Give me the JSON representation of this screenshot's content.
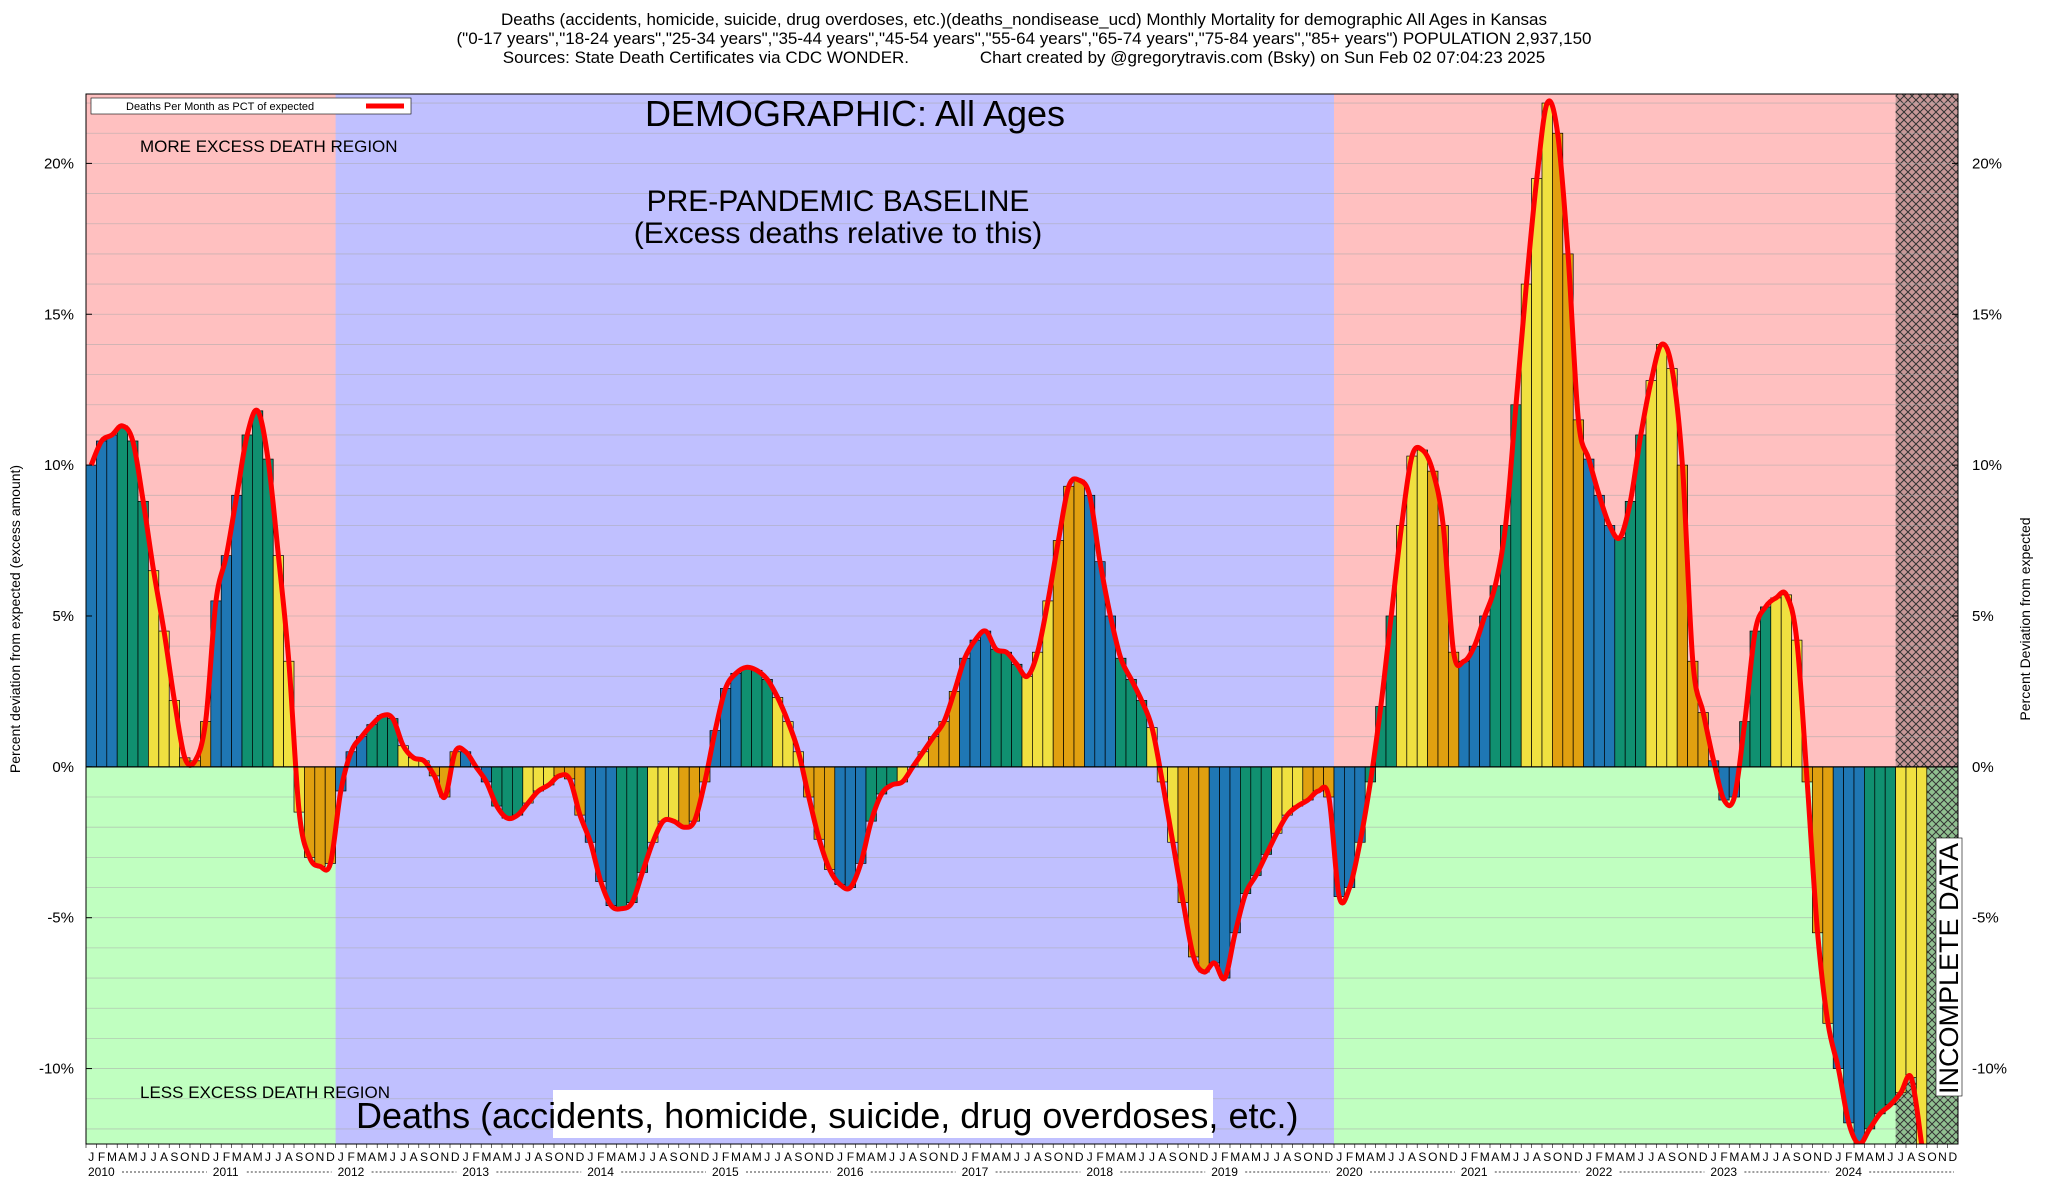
{
  "title_lines": [
    "Deaths (accidents, homicide, suicide, drug overdoses, etc.)(deaths_nondisease_ucd) Monthly Mortality for demographic All Ages in Kansas",
    "(\"0-17 years\",\"18-24 years\",\"25-34 years\",\"35-44 years\",\"45-54 years\",\"55-64 years\",\"65-74 years\",\"75-84 years\",\"85+ years\") POPULATION 2,937,150",
    "Sources: State Death Certificates via CDC WONDER.               Chart created by @gregorytravis.com (Bsky) on Sun Feb 02 07:04:23 2025"
  ],
  "chart_data": {
    "type": "bar",
    "ylabel": "Percent deviation from expected (excess amount)",
    "ylabel_right": "Percent Deviation from expected",
    "ylim": [
      -12.5,
      22.3
    ],
    "y_ticks": [
      -10,
      -5,
      0,
      5,
      10,
      15,
      20
    ],
    "y_tick_labels": [
      "-10%",
      "-5%",
      "0%",
      "5%",
      "10%",
      "15%",
      "20%"
    ],
    "x_start": "2010-01",
    "month_letters": [
      "J",
      "F",
      "M",
      "A",
      "M",
      "J",
      "J",
      "A",
      "S",
      "O",
      "N",
      "D"
    ],
    "years": [
      "2010",
      "2011",
      "2012",
      "2013",
      "2014",
      "2015",
      "2016",
      "2017",
      "2018",
      "2019",
      "2020",
      "2021",
      "2022",
      "2023",
      "2024"
    ],
    "legend": {
      "label": "Deaths Per Month as PCT of expected",
      "line_color": "#ff0000",
      "placement": "top-left"
    },
    "annotations": {
      "demographic": "DEMOGRAPHIC: All Ages",
      "baseline_title": "PRE-PANDEMIC BASELINE",
      "baseline_sub": "(Excess deaths relative to this)",
      "more_region": "MORE EXCESS DEATH REGION",
      "less_region": "LESS EXCESS DEATH REGION",
      "bottom_caption": "Deaths (accidents, homicide, suicide, drug overdoses, etc.)",
      "incomplete": "INCOMPLETE DATA"
    },
    "regions": {
      "baseline_start": "2012-01",
      "baseline_end": "2019-12",
      "incomplete_start": "2024-07"
    },
    "colors": {
      "more_region": "#ffc0c0",
      "less_region": "#c0ffc0",
      "baseline_region": "#c0c0ff",
      "line": "#ff0000",
      "quarter_bars": [
        "#1f77b4",
        "#109070",
        "#f0e040",
        "#e0a010"
      ]
    },
    "values": [
      10.0,
      10.8,
      11.0,
      11.3,
      10.8,
      8.8,
      6.5,
      4.5,
      2.2,
      0.3,
      0.2,
      1.5,
      5.5,
      7.0,
      9.0,
      11.0,
      11.8,
      10.2,
      7.0,
      3.5,
      -1.5,
      -3.0,
      -3.3,
      -3.2,
      -0.8,
      0.5,
      1.0,
      1.4,
      1.7,
      1.6,
      0.7,
      0.3,
      0.2,
      -0.3,
      -1.0,
      0.5,
      0.5,
      0.0,
      -0.5,
      -1.3,
      -1.7,
      -1.6,
      -1.2,
      -0.8,
      -0.6,
      -0.3,
      -0.4,
      -1.6,
      -2.5,
      -3.8,
      -4.6,
      -4.7,
      -4.5,
      -3.5,
      -2.5,
      -1.8,
      -1.8,
      -2.0,
      -1.8,
      -0.5,
      1.2,
      2.6,
      3.1,
      3.3,
      3.2,
      2.9,
      2.3,
      1.5,
      0.5,
      -1.0,
      -2.4,
      -3.4,
      -3.9,
      -4.0,
      -3.2,
      -1.8,
      -0.9,
      -0.6,
      -0.5,
      0.0,
      0.5,
      1.0,
      1.5,
      2.5,
      3.6,
      4.2,
      4.5,
      3.9,
      3.8,
      3.4,
      3.0,
      3.8,
      5.5,
      7.5,
      9.3,
      9.5,
      9.0,
      6.8,
      5.0,
      3.6,
      2.9,
      2.2,
      1.3,
      -0.5,
      -2.5,
      -4.5,
      -6.3,
      -6.8,
      -6.5,
      -7.0,
      -5.5,
      -4.2,
      -3.6,
      -2.9,
      -2.2,
      -1.6,
      -1.3,
      -1.1,
      -0.8,
      -1.0,
      -4.3,
      -4.0,
      -2.5,
      -0.5,
      2.0,
      5.0,
      8.0,
      10.3,
      10.5,
      9.8,
      8.0,
      3.8,
      3.5,
      4.0,
      5.0,
      6.0,
      8.0,
      12.0,
      16.0,
      19.5,
      22.0,
      21.0,
      17.0,
      11.5,
      10.2,
      9.0,
      8.0,
      7.6,
      8.8,
      11.0,
      12.8,
      14.0,
      13.2,
      10.0,
      3.5,
      1.8,
      0.2,
      -1.1,
      -1.0,
      1.5,
      4.5,
      5.3,
      5.6,
      5.7,
      4.2,
      -0.5,
      -5.5,
      -8.5,
      -10.0,
      -11.8,
      -12.5,
      -12.0,
      -11.5,
      -11.2,
      -10.8,
      -10.3,
      -12.5
    ]
  }
}
